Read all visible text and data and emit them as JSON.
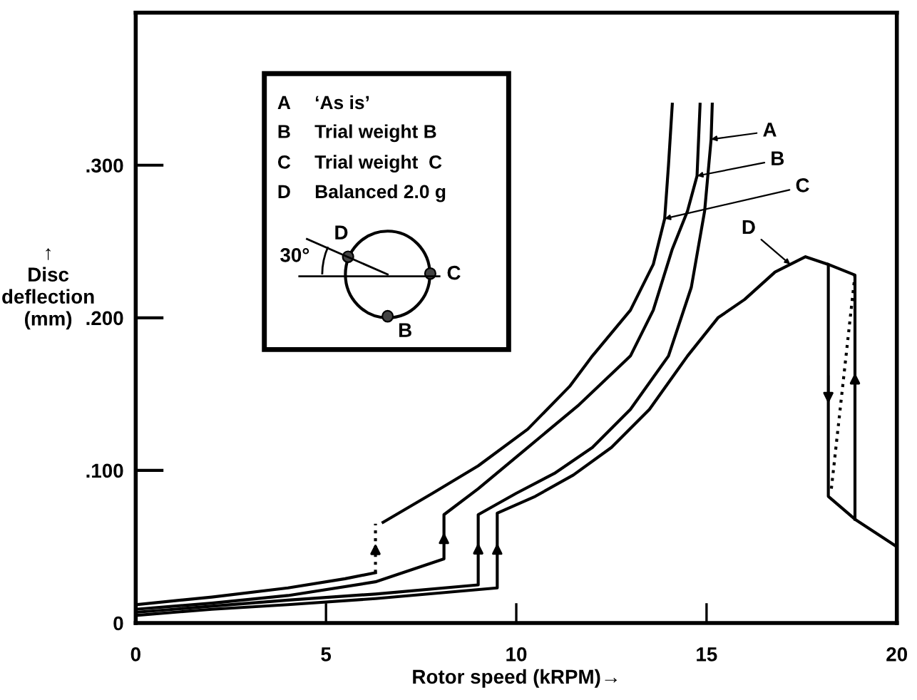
{
  "chart_data": {
    "type": "line",
    "xlabel": "Rotor speed (kRPM)→",
    "ylabel": "↑\nDisc\ndeflection\n(mm)",
    "xlim": [
      0,
      20
    ],
    "xticks": [
      0,
      5,
      10,
      15,
      20
    ],
    "ylim": [
      0,
      0.4
    ],
    "yticks": [
      0,
      {
        "value": 0.1,
        "label": ".100"
      },
      {
        "value": 0.2,
        "label": ".200"
      },
      {
        "value": 0.3,
        "label": ".300"
      }
    ],
    "series": [
      {
        "color": "#000000",
        "line_style": "solid",
        "x": [
          0,
          2,
          4,
          5.5,
          6.3
        ],
        "values": [
          0.012,
          0.017,
          0.023,
          0.029,
          0.033
        ]
      },
      {
        "color": "#000000",
        "line_style": "solid",
        "x": [
          6.5,
          7.8,
          9.0,
          10.3,
          11.4,
          12.0,
          13.0,
          13.6,
          13.9,
          14.0,
          14.1
        ],
        "values": [
          0.066,
          0.085,
          0.103,
          0.127,
          0.155,
          0.175,
          0.205,
          0.235,
          0.265,
          0.3,
          0.34
        ]
      },
      {
        "color": "#000000",
        "line_style": "dotted",
        "x": [
          6.3,
          6.3
        ],
        "values": [
          0.033,
          0.065
        ]
      },
      {
        "color": "#000000",
        "line_style": "solid",
        "x": [
          0,
          2,
          4,
          6.3,
          8.1,
          8.1,
          9.0,
          10.3,
          11.65,
          13.0,
          13.6,
          14.1,
          14.5,
          14.75,
          14.83
        ],
        "values": [
          0.009,
          0.013,
          0.018,
          0.027,
          0.042,
          0.071,
          0.088,
          0.115,
          0.143,
          0.175,
          0.205,
          0.245,
          0.27,
          0.293,
          0.34
        ]
      },
      {
        "color": "#000000",
        "line_style": "solid",
        "x": [
          0,
          2,
          4,
          6.3,
          9.0,
          9.0,
          10,
          11,
          12,
          13,
          14,
          14.6,
          14.95,
          15.12,
          15.15
        ],
        "values": [
          0.007,
          0.011,
          0.015,
          0.019,
          0.025,
          0.071,
          0.085,
          0.098,
          0.115,
          0.14,
          0.175,
          0.22,
          0.27,
          0.317,
          0.34
        ]
      },
      {
        "color": "#000000",
        "line_style": "solid",
        "x": [
          0,
          2,
          4,
          6.3,
          9.5,
          9.5,
          10.5,
          11.5,
          12.5,
          13.5,
          14.5,
          15.3,
          16.0,
          16.8,
          17.6,
          18.2,
          18.2,
          18.9,
          20
        ],
        "values": [
          0.005,
          0.009,
          0.012,
          0.016,
          0.023,
          0.072,
          0.083,
          0.097,
          0.115,
          0.14,
          0.175,
          0.2,
          0.212,
          0.23,
          0.24,
          0.235,
          0.083,
          0.068,
          0.05
        ]
      },
      {
        "color": "#000000",
        "line_style": "solid",
        "x": [
          18.9,
          18.9,
          18.2
        ],
        "values": [
          0.068,
          0.228,
          0.235
        ]
      },
      {
        "color": "#000000",
        "line_style": "dotted",
        "x": [
          18.28,
          18.9
        ],
        "values": [
          0.088,
          0.228
        ]
      }
    ],
    "annotations": [
      {
        "text": "A",
        "x": 15.12,
        "y": 0.317
      },
      {
        "text": "B",
        "x": 14.75,
        "y": 0.293
      },
      {
        "text": "C",
        "x": 13.9,
        "y": 0.265
      },
      {
        "text": "D",
        "x": 17.2,
        "y": 0.235
      },
      "A",
      "‘As is’",
      "B",
      "Trial weight B",
      "C",
      "Trial weight  C",
      "D",
      "Balanced 2.0 g",
      "30°",
      "D",
      "C",
      "B"
    ]
  }
}
